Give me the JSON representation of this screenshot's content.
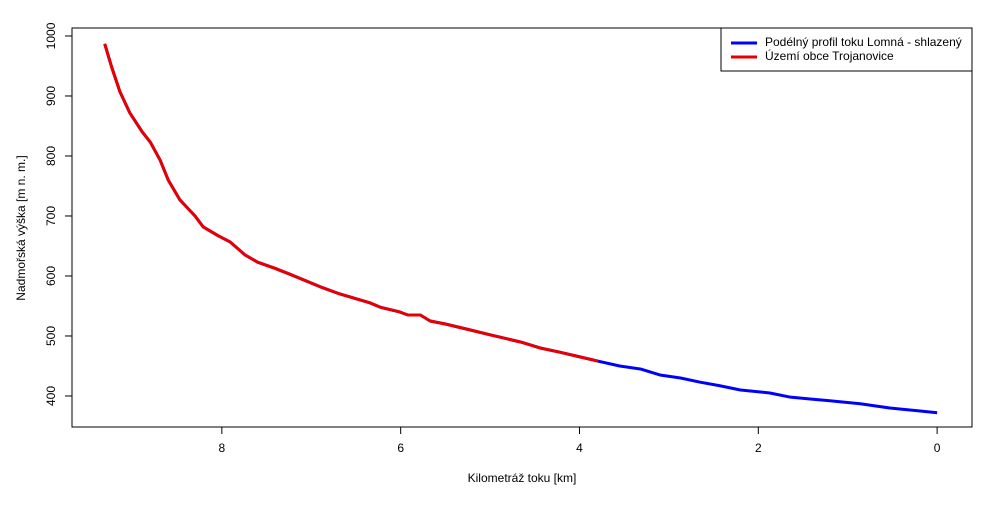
{
  "chart_data": {
    "type": "line",
    "x_label": "Kilometráž toku [km]",
    "y_label": "Nadmořská výška [m n. m.]",
    "x": [
      9.31,
      9.23,
      9.14,
      9.03,
      8.89,
      8.8,
      8.69,
      8.6,
      8.47,
      8.3,
      8.21,
      8.04,
      7.91,
      7.74,
      7.6,
      7.41,
      7.24,
      6.9,
      6.68,
      6.34,
      6.23,
      6.01,
      5.92,
      5.78,
      5.67,
      5.5,
      5.22,
      5.0,
      4.66,
      4.44,
      4.22,
      3.99,
      3.79,
      3.55,
      3.32,
      3.1,
      2.87,
      2.65,
      2.43,
      2.2,
      1.87,
      1.64,
      1.42,
      1.2,
      0.86,
      0.53,
      0.19,
      0
    ],
    "series": [
      {
        "name": "Podélný profil toku Lomná - shlazený",
        "color": "#0000ff",
        "values": [
          987,
          947,
          907,
          872,
          840,
          823,
          793,
          760,
          727,
          700,
          682,
          667,
          657,
          635,
          623,
          613,
          603,
          582,
          570,
          555,
          548,
          540,
          535,
          535,
          525,
          520,
          510,
          502,
          490,
          480,
          473,
          465,
          458,
          450,
          445,
          435,
          430,
          423,
          417,
          410,
          405,
          398,
          395,
          392,
          387,
          380,
          375,
          372
        ]
      },
      {
        "name": "Území obce Trojanovice",
        "color": "#e60000",
        "values": [
          987,
          947,
          907,
          872,
          840,
          823,
          793,
          760,
          727,
          700,
          682,
          667,
          657,
          635,
          623,
          613,
          603,
          582,
          570,
          555,
          548,
          540,
          535,
          535,
          525,
          520,
          510,
          502,
          490,
          480,
          473,
          465,
          458,
          null,
          null,
          null,
          null,
          null,
          null,
          null,
          null,
          null,
          null,
          null,
          null,
          null,
          null,
          null
        ]
      }
    ],
    "xlim": [
      9.676,
      -0.39
    ],
    "xticks": [
      8,
      6,
      4,
      2,
      0
    ],
    "ylim": [
      1013.3,
      348.3
    ],
    "yticks": [
      400,
      500,
      600,
      700,
      800,
      900,
      1000
    ],
    "legend": "top-right"
  }
}
